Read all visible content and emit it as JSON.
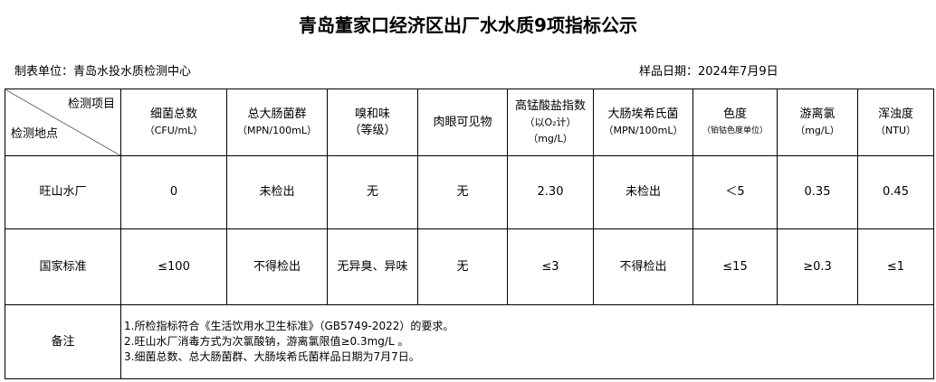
{
  "title": "青岛董家口经济区出厂水水质9项指标公示",
  "unit": "制表单位：青岛水投水质检测中心",
  "date": "样品日期：2024年7月9日",
  "header": {
    "item": "检测项目",
    "site": "检测地点",
    "cols": [
      {
        "name": "细菌总数",
        "unit": "（CFU/mL）"
      },
      {
        "name": "总大肠菌群",
        "unit": "（MPN/100mL）"
      },
      {
        "name": "嗅和味",
        "unit": "（等级）"
      },
      {
        "name": "肉眼可见物",
        "unit": ""
      },
      {
        "name": "高锰酸盐指数",
        "unit": "（以O₂计）",
        "unit2": "（mg/L）"
      },
      {
        "name": "大肠埃希氏菌",
        "unit": "（MPN/100mL）"
      },
      {
        "name": "色度",
        "unit": "（铂钴色度单位）"
      },
      {
        "name": "游离氯",
        "unit": "（mg/L）"
      },
      {
        "name": "浑浊度",
        "unit": "（NTU）"
      }
    ]
  },
  "rows": [
    {
      "site": "旺山水厂",
      "values": [
        "0",
        "未检出",
        "无",
        "无",
        "2.30",
        "未检出",
        "＜5",
        "0.35",
        "0.45"
      ]
    },
    {
      "site": "国家标准",
      "values": [
        "≤100",
        "不得检出",
        "无异臭、异味",
        "无",
        "≤3",
        "不得检出",
        "≤15",
        "≥0.3",
        "≤1"
      ]
    }
  ],
  "notes": {
    "label": "备注",
    "lines": [
      "1.所检指标符合《生活饮用水卫生标准》（GB5749-2022）的要求。",
      "2.旺山水厂消毒方式为次氯酸钠，游离氯限值≥0.3mg/L 。",
      "3.细菌总数、总大肠菌群、大肠埃希氏菌样品日期为7月7日。"
    ]
  }
}
